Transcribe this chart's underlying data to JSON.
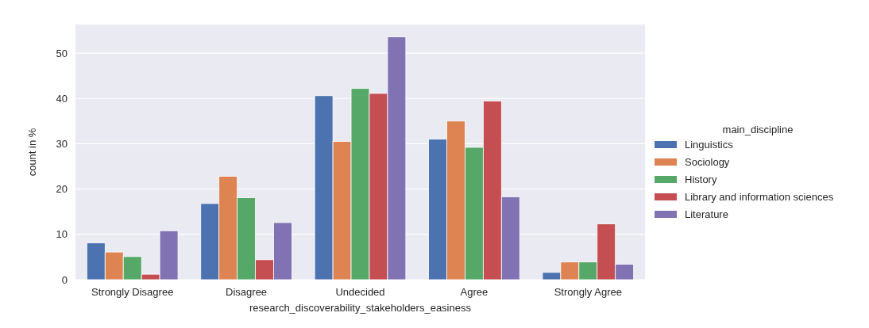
{
  "chart_data": {
    "type": "bar",
    "xlabel": "research_discoverability_stakeholders_easiness",
    "ylabel": "count in %",
    "legend_title": "main_discipline",
    "legend": "right",
    "categories": [
      "Strongly Disagree",
      "Disagree",
      "Undecided",
      "Agree",
      "Strongly Agree"
    ],
    "series": [
      {
        "name": "Linguistics",
        "color": "#4c72b0",
        "values": [
          8.1,
          16.8,
          40.6,
          31.0,
          1.6
        ]
      },
      {
        "name": "Sociology",
        "color": "#dd8452",
        "values": [
          6.1,
          22.8,
          30.5,
          35.0,
          3.9
        ]
      },
      {
        "name": "History",
        "color": "#55a868",
        "values": [
          5.1,
          18.1,
          42.2,
          29.2,
          3.9
        ]
      },
      {
        "name": "Library and information sciences",
        "color": "#c44e52",
        "values": [
          1.2,
          4.4,
          41.1,
          39.4,
          12.3
        ]
      },
      {
        "name": "Literature",
        "color": "#8172b3",
        "values": [
          10.8,
          12.6,
          53.6,
          18.3,
          3.4
        ]
      }
    ],
    "ylim": [
      0,
      56.3
    ],
    "yticks": [
      0,
      10,
      20,
      30,
      40,
      50
    ],
    "grid": "y"
  }
}
